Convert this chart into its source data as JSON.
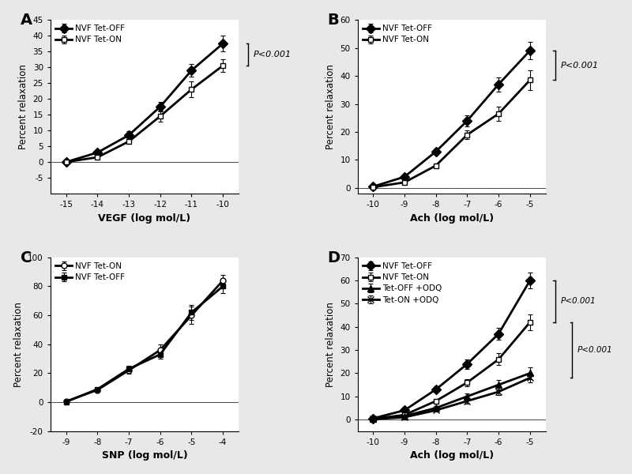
{
  "panel_A": {
    "label": "A",
    "xlabel": "VEGF (log mol/L)",
    "ylabel": "Percent relaxation",
    "xlim": [
      -15.5,
      -9.5
    ],
    "ylim": [
      -10,
      45
    ],
    "xticks": [
      -15,
      -14,
      -13,
      -12,
      -11,
      -10
    ],
    "yticks": [
      -5,
      0,
      5,
      10,
      15,
      20,
      25,
      30,
      35,
      40,
      45
    ],
    "series": [
      {
        "label": "NVF Tet-OFF",
        "x": [
          -15,
          -14,
          -13,
          -12,
          -11,
          -10
        ],
        "y": [
          0.0,
          3.0,
          8.5,
          17.5,
          29.0,
          37.5
        ],
        "yerr": [
          0.3,
          0.5,
          1.2,
          1.5,
          2.0,
          2.5
        ],
        "marker": "D",
        "filled": true,
        "lw": 2.0
      },
      {
        "label": "NVF Tet-ON",
        "x": [
          -15,
          -14,
          -13,
          -12,
          -11,
          -10
        ],
        "y": [
          0.0,
          1.5,
          6.5,
          14.5,
          23.0,
          30.5
        ],
        "yerr": [
          0.3,
          0.5,
          0.8,
          1.8,
          2.5,
          2.0
        ],
        "marker": "s",
        "filled": false,
        "lw": 2.0
      }
    ],
    "pvalue": "P<0.001",
    "bracket_y1": 30.5,
    "bracket_y2": 37.5
  },
  "panel_B": {
    "label": "B",
    "xlabel": "Ach (log mol/L)",
    "ylabel": "Percent relaxation",
    "xlim": [
      -10.5,
      -4.5
    ],
    "ylim": [
      -2,
      60
    ],
    "xticks": [
      -10,
      -9,
      -8,
      -7,
      -6,
      -5
    ],
    "yticks": [
      0,
      10,
      20,
      30,
      40,
      50,
      60
    ],
    "series": [
      {
        "label": "NVF Tet-OFF",
        "x": [
          -10,
          -9,
          -8,
          -7,
          -6,
          -5
        ],
        "y": [
          0.5,
          4.0,
          13.0,
          24.0,
          37.0,
          49.0
        ],
        "yerr": [
          0.3,
          0.5,
          1.2,
          2.0,
          2.5,
          3.0
        ],
        "marker": "D",
        "filled": true,
        "lw": 2.0
      },
      {
        "label": "NVF Tet-ON",
        "x": [
          -10,
          -9,
          -8,
          -7,
          -6,
          -5
        ],
        "y": [
          0.3,
          2.0,
          8.0,
          19.0,
          26.5,
          38.5
        ],
        "yerr": [
          0.3,
          0.5,
          0.8,
          1.5,
          2.5,
          3.5
        ],
        "marker": "s",
        "filled": false,
        "lw": 2.0
      }
    ],
    "pvalue": "P<0.001",
    "bracket_y1": 38.5,
    "bracket_y2": 49.0
  },
  "panel_C": {
    "label": "C",
    "xlabel": "SNP (log mol/L)",
    "ylabel": "Percent relaxation",
    "xlim": [
      -9.5,
      -3.5
    ],
    "ylim": [
      -20,
      100
    ],
    "xticks": [
      -9,
      -8,
      -7,
      -6,
      -5,
      -4
    ],
    "yticks": [
      -20,
      0,
      20,
      40,
      60,
      80,
      100
    ],
    "series": [
      {
        "label": "NVF Tet-ON",
        "x": [
          -9,
          -8,
          -7,
          -6,
          -5,
          -4
        ],
        "y": [
          0.5,
          8.5,
          22.0,
          36.0,
          60.0,
          84.0
        ],
        "yerr": [
          0.3,
          1.0,
          2.5,
          4.0,
          6.0,
          4.0
        ],
        "marker": "o",
        "filled": false,
        "lw": 2.0
      },
      {
        "label": "NVF Tet-OFF",
        "x": [
          -9,
          -8,
          -7,
          -6,
          -5,
          -4
        ],
        "y": [
          0.3,
          9.0,
          23.0,
          33.0,
          62.0,
          80.0
        ],
        "yerr": [
          0.3,
          1.0,
          2.0,
          3.0,
          5.0,
          4.5
        ],
        "marker": "s",
        "filled": true,
        "lw": 2.0
      }
    ],
    "pvalue": null
  },
  "panel_D": {
    "label": "D",
    "xlabel": "Ach (log mol/L)",
    "ylabel": "Percent relaxation",
    "xlim": [
      -10.5,
      -4.5
    ],
    "ylim": [
      -5,
      70
    ],
    "xticks": [
      -10,
      -9,
      -8,
      -7,
      -6,
      -5
    ],
    "yticks": [
      0,
      10,
      20,
      30,
      40,
      50,
      60,
      70
    ],
    "series": [
      {
        "label": "NVF Tet-OFF",
        "x": [
          -10,
          -9,
          -8,
          -7,
          -6,
          -5
        ],
        "y": [
          0.5,
          4.0,
          13.0,
          24.0,
          37.0,
          60.0
        ],
        "yerr": [
          0.3,
          0.5,
          1.2,
          2.0,
          2.5,
          3.5
        ],
        "marker": "D",
        "filled": true,
        "lw": 2.0
      },
      {
        "label": "NVF Tet-ON",
        "x": [
          -10,
          -9,
          -8,
          -7,
          -6,
          -5
        ],
        "y": [
          0.3,
          2.0,
          8.0,
          16.0,
          26.0,
          42.0
        ],
        "yerr": [
          0.3,
          0.5,
          0.8,
          1.5,
          2.5,
          3.5
        ],
        "marker": "s",
        "filled": false,
        "lw": 2.0
      },
      {
        "label": "Tet-OFF +ODQ",
        "x": [
          -10,
          -9,
          -8,
          -7,
          -6,
          -5
        ],
        "y": [
          0.2,
          1.5,
          5.0,
          10.0,
          15.0,
          20.0
        ],
        "yerr": [
          0.2,
          0.5,
          0.8,
          1.2,
          2.0,
          2.5
        ],
        "marker": "^",
        "filled": true,
        "lw": 2.0
      },
      {
        "label": "Tet-ON +ODQ",
        "x": [
          -10,
          -9,
          -8,
          -7,
          -6,
          -5
        ],
        "y": [
          0.2,
          1.0,
          4.0,
          8.0,
          12.0,
          18.0
        ],
        "yerr": [
          0.2,
          0.4,
          0.7,
          1.0,
          1.5,
          2.0
        ],
        "marker": "x",
        "filled": false,
        "lw": 2.0
      }
    ],
    "pvalue1": "P<0.001",
    "bracket1_y1": 42.0,
    "bracket1_y2": 60.0,
    "pvalue2": "P<0.001",
    "bracket2_y1": 18.0,
    "bracket2_y2": 42.0
  },
  "bg_color": "#e8e8e8",
  "panel_bg": "#ffffff"
}
